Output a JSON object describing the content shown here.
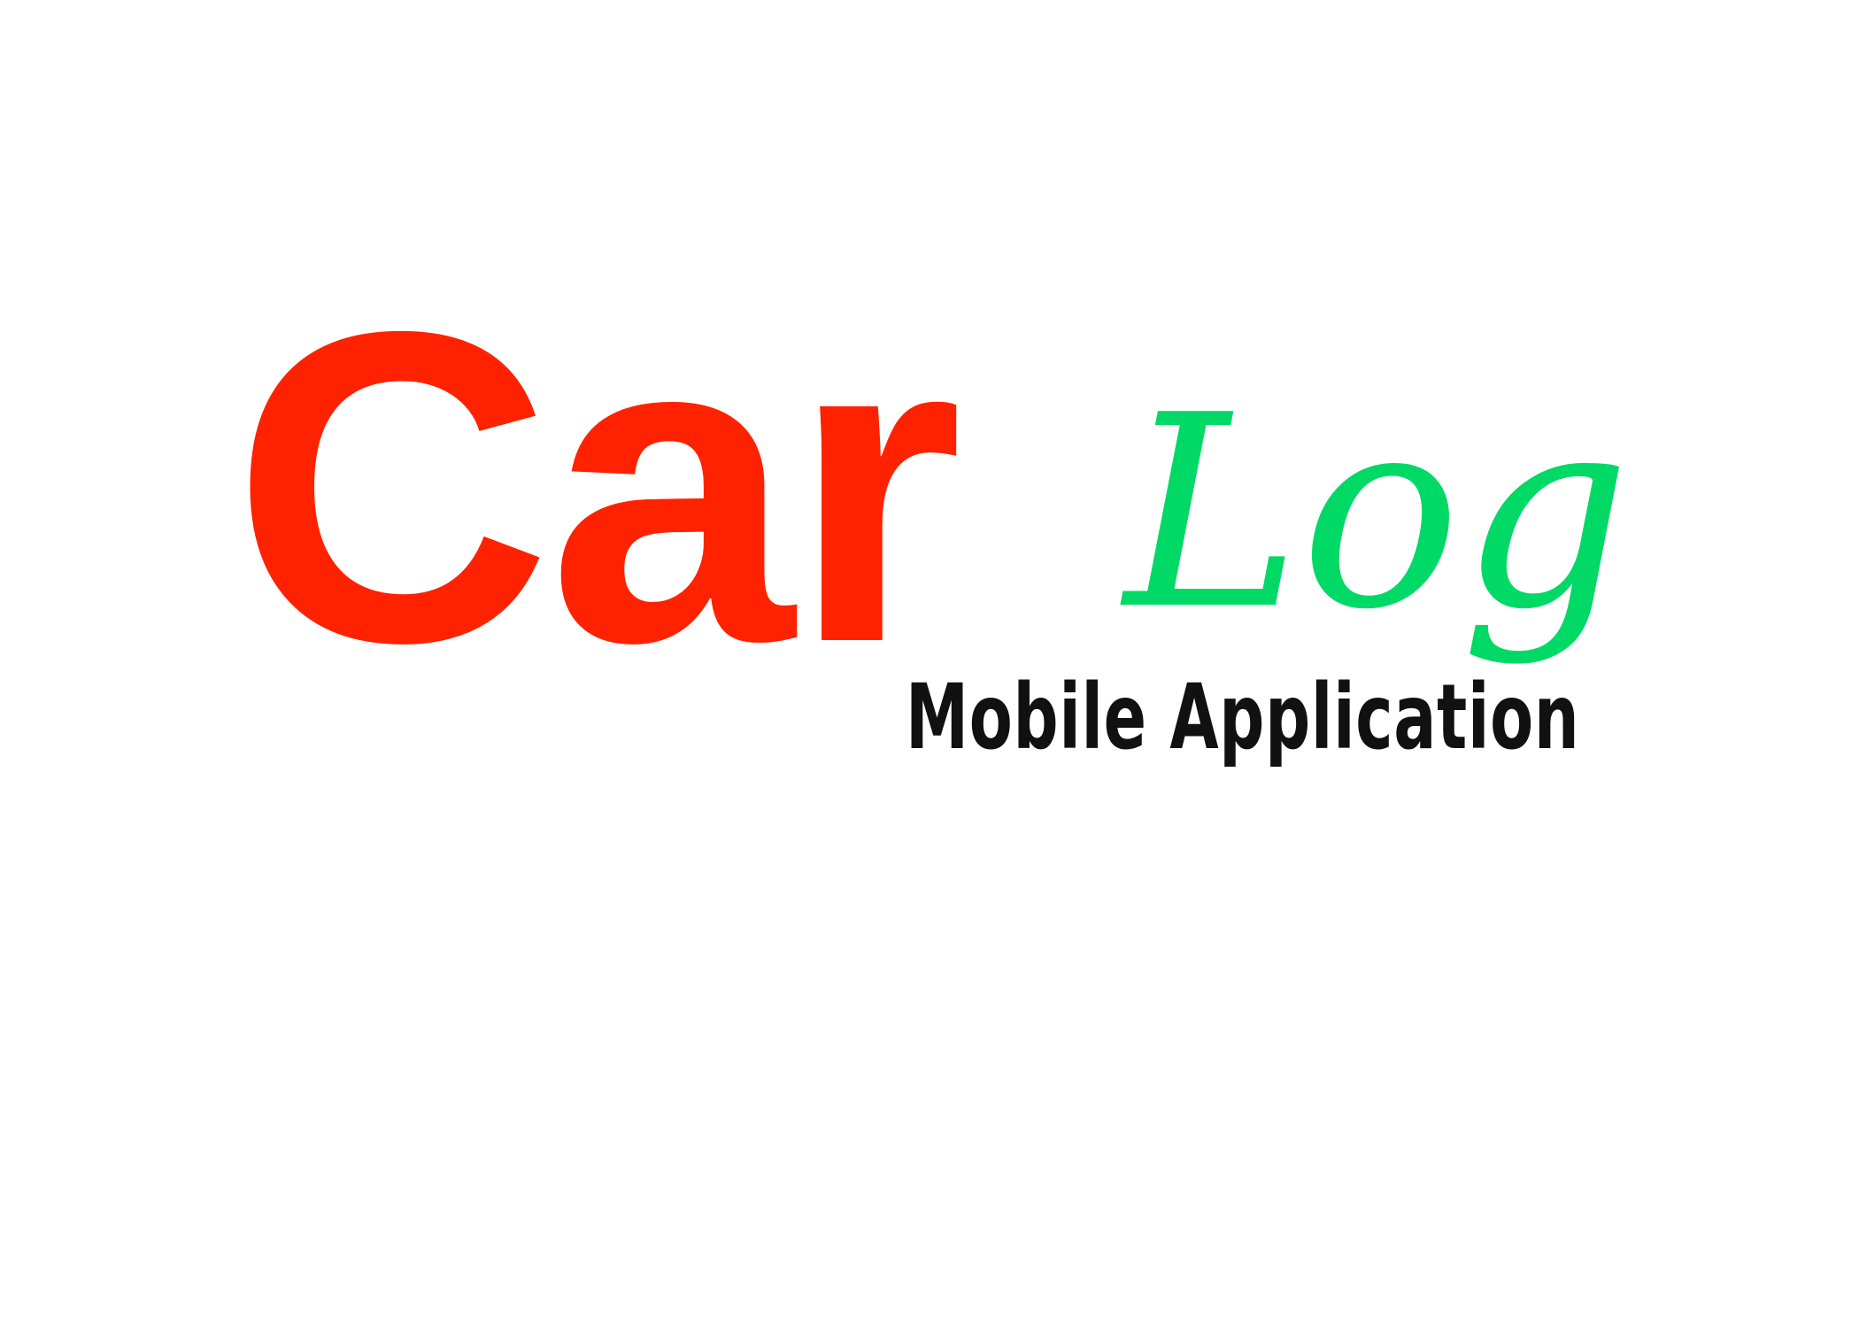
{
  "logo": {
    "brand_primary": "Car",
    "brand_secondary": "Log",
    "tagline": "Mobile Application"
  },
  "colors": {
    "primary": "#ff2200",
    "secondary": "#00d966",
    "tagline": "#111111",
    "background": "#ffffff"
  }
}
